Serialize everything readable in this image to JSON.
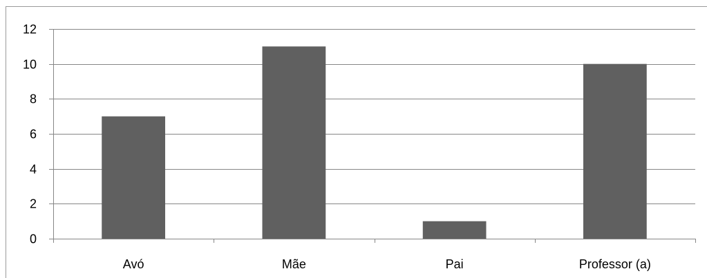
{
  "chart_data": {
    "type": "bar",
    "categories": [
      "Avó",
      "Mãe",
      "Pai",
      "Professor (a)"
    ],
    "values": [
      7,
      11,
      1,
      10
    ],
    "ylim": [
      0,
      12
    ],
    "yticks": [
      0,
      2,
      4,
      6,
      8,
      10,
      12
    ],
    "title": "",
    "xlabel": "",
    "ylabel": "",
    "grid": "horizontal",
    "legend": "none",
    "bar_color": "#606060",
    "grid_color": "#868686",
    "axis_color": "#868686"
  }
}
